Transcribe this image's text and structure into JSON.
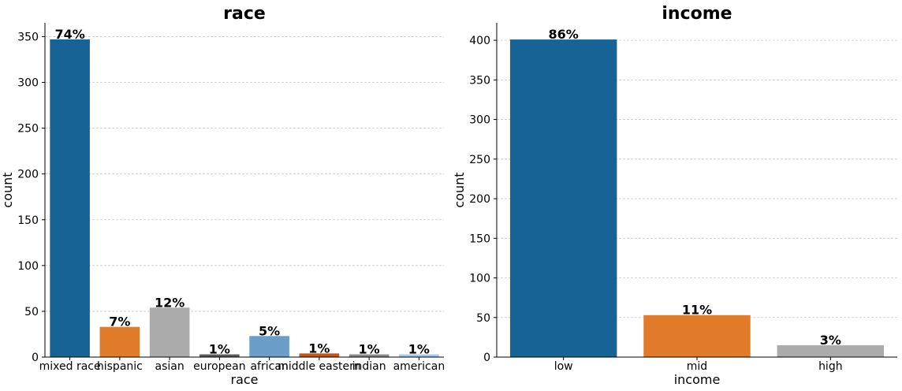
{
  "chart_data": [
    {
      "type": "bar",
      "title": "race",
      "xlabel": "race",
      "ylabel": "count",
      "categories": [
        "mixed race",
        "hispanic",
        "asian",
        "european",
        "african",
        "middle eastern",
        "indian",
        "american"
      ],
      "values": [
        347,
        33,
        54,
        3,
        23,
        4,
        3,
        3
      ],
      "percent_labels": [
        "74%",
        "7%",
        "12%",
        "1%",
        "5%",
        "1%",
        "1%",
        "1%"
      ],
      "colors": [
        "#176395",
        "#e07b2a",
        "#ababab",
        "#595959",
        "#6a9dc7",
        "#c2561a",
        "#898989",
        "#a5c7e8"
      ],
      "ylim": [
        0,
        365
      ],
      "yticks": [
        0,
        50,
        100,
        150,
        200,
        250,
        300,
        350
      ],
      "grid": true
    },
    {
      "type": "bar",
      "title": "income",
      "xlabel": "income",
      "ylabel": "count",
      "categories": [
        "low",
        "mid",
        "high"
      ],
      "values": [
        401,
        53,
        15
      ],
      "percent_labels": [
        "86%",
        "11%",
        "3%"
      ],
      "colors": [
        "#176395",
        "#e07b2a",
        "#ababab"
      ],
      "ylim": [
        0,
        422
      ],
      "yticks": [
        0,
        50,
        100,
        150,
        200,
        250,
        300,
        350,
        400
      ],
      "grid": true
    }
  ]
}
